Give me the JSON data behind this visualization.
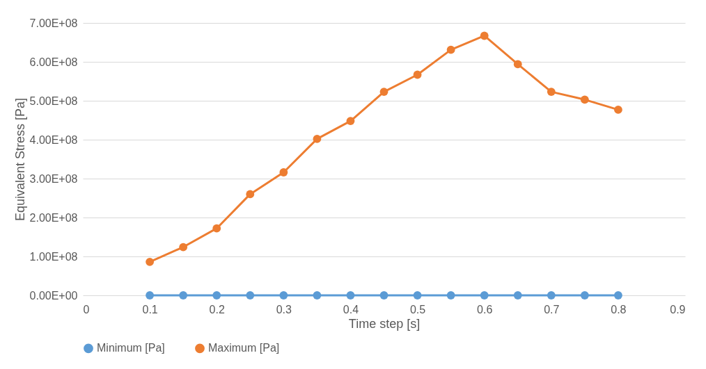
{
  "chart_data": {
    "type": "line",
    "xlabel": "Time step [s]",
    "ylabel": "Equivalent Stress [Pa]",
    "x": [
      0.1,
      0.15,
      0.2,
      0.25,
      0.3,
      0.35,
      0.4,
      0.45,
      0.5,
      0.55,
      0.6,
      0.65,
      0.7,
      0.75,
      0.8
    ],
    "series": [
      {
        "name": "Minimum [Pa]",
        "color": "#5b9bd5",
        "values": [
          0,
          0,
          0,
          0,
          0,
          0,
          0,
          0,
          0,
          0,
          0,
          0,
          0,
          0,
          0
        ]
      },
      {
        "name": "Maximum [Pa]",
        "color": "#ed7d31",
        "values": [
          86000000,
          124000000,
          172000000,
          260000000,
          316000000,
          402000000,
          448000000,
          523000000,
          567000000,
          631000000,
          667000000,
          594000000,
          523000000,
          503000000,
          477000000
        ]
      }
    ],
    "xlim": [
      0,
      0.9
    ],
    "xticks": [
      0,
      0.1,
      0.2,
      0.3,
      0.4,
      0.5,
      0.6,
      0.7,
      0.8,
      0.9
    ],
    "ylim": [
      0,
      700000000
    ],
    "yticks": [
      {
        "value": 0,
        "label": "0.00E+00"
      },
      {
        "value": 100000000,
        "label": "1.00E+08"
      },
      {
        "value": 200000000,
        "label": "2.00E+08"
      },
      {
        "value": 300000000,
        "label": "3.00E+08"
      },
      {
        "value": 400000000,
        "label": "4.00E+08"
      },
      {
        "value": 500000000,
        "label": "5.00E+08"
      },
      {
        "value": 600000000,
        "label": "6.00E+08"
      },
      {
        "value": 700000000,
        "label": "7.00E+08"
      }
    ],
    "grid": "y",
    "legend": "bottom",
    "marker": "circle",
    "line_style": "solid"
  }
}
